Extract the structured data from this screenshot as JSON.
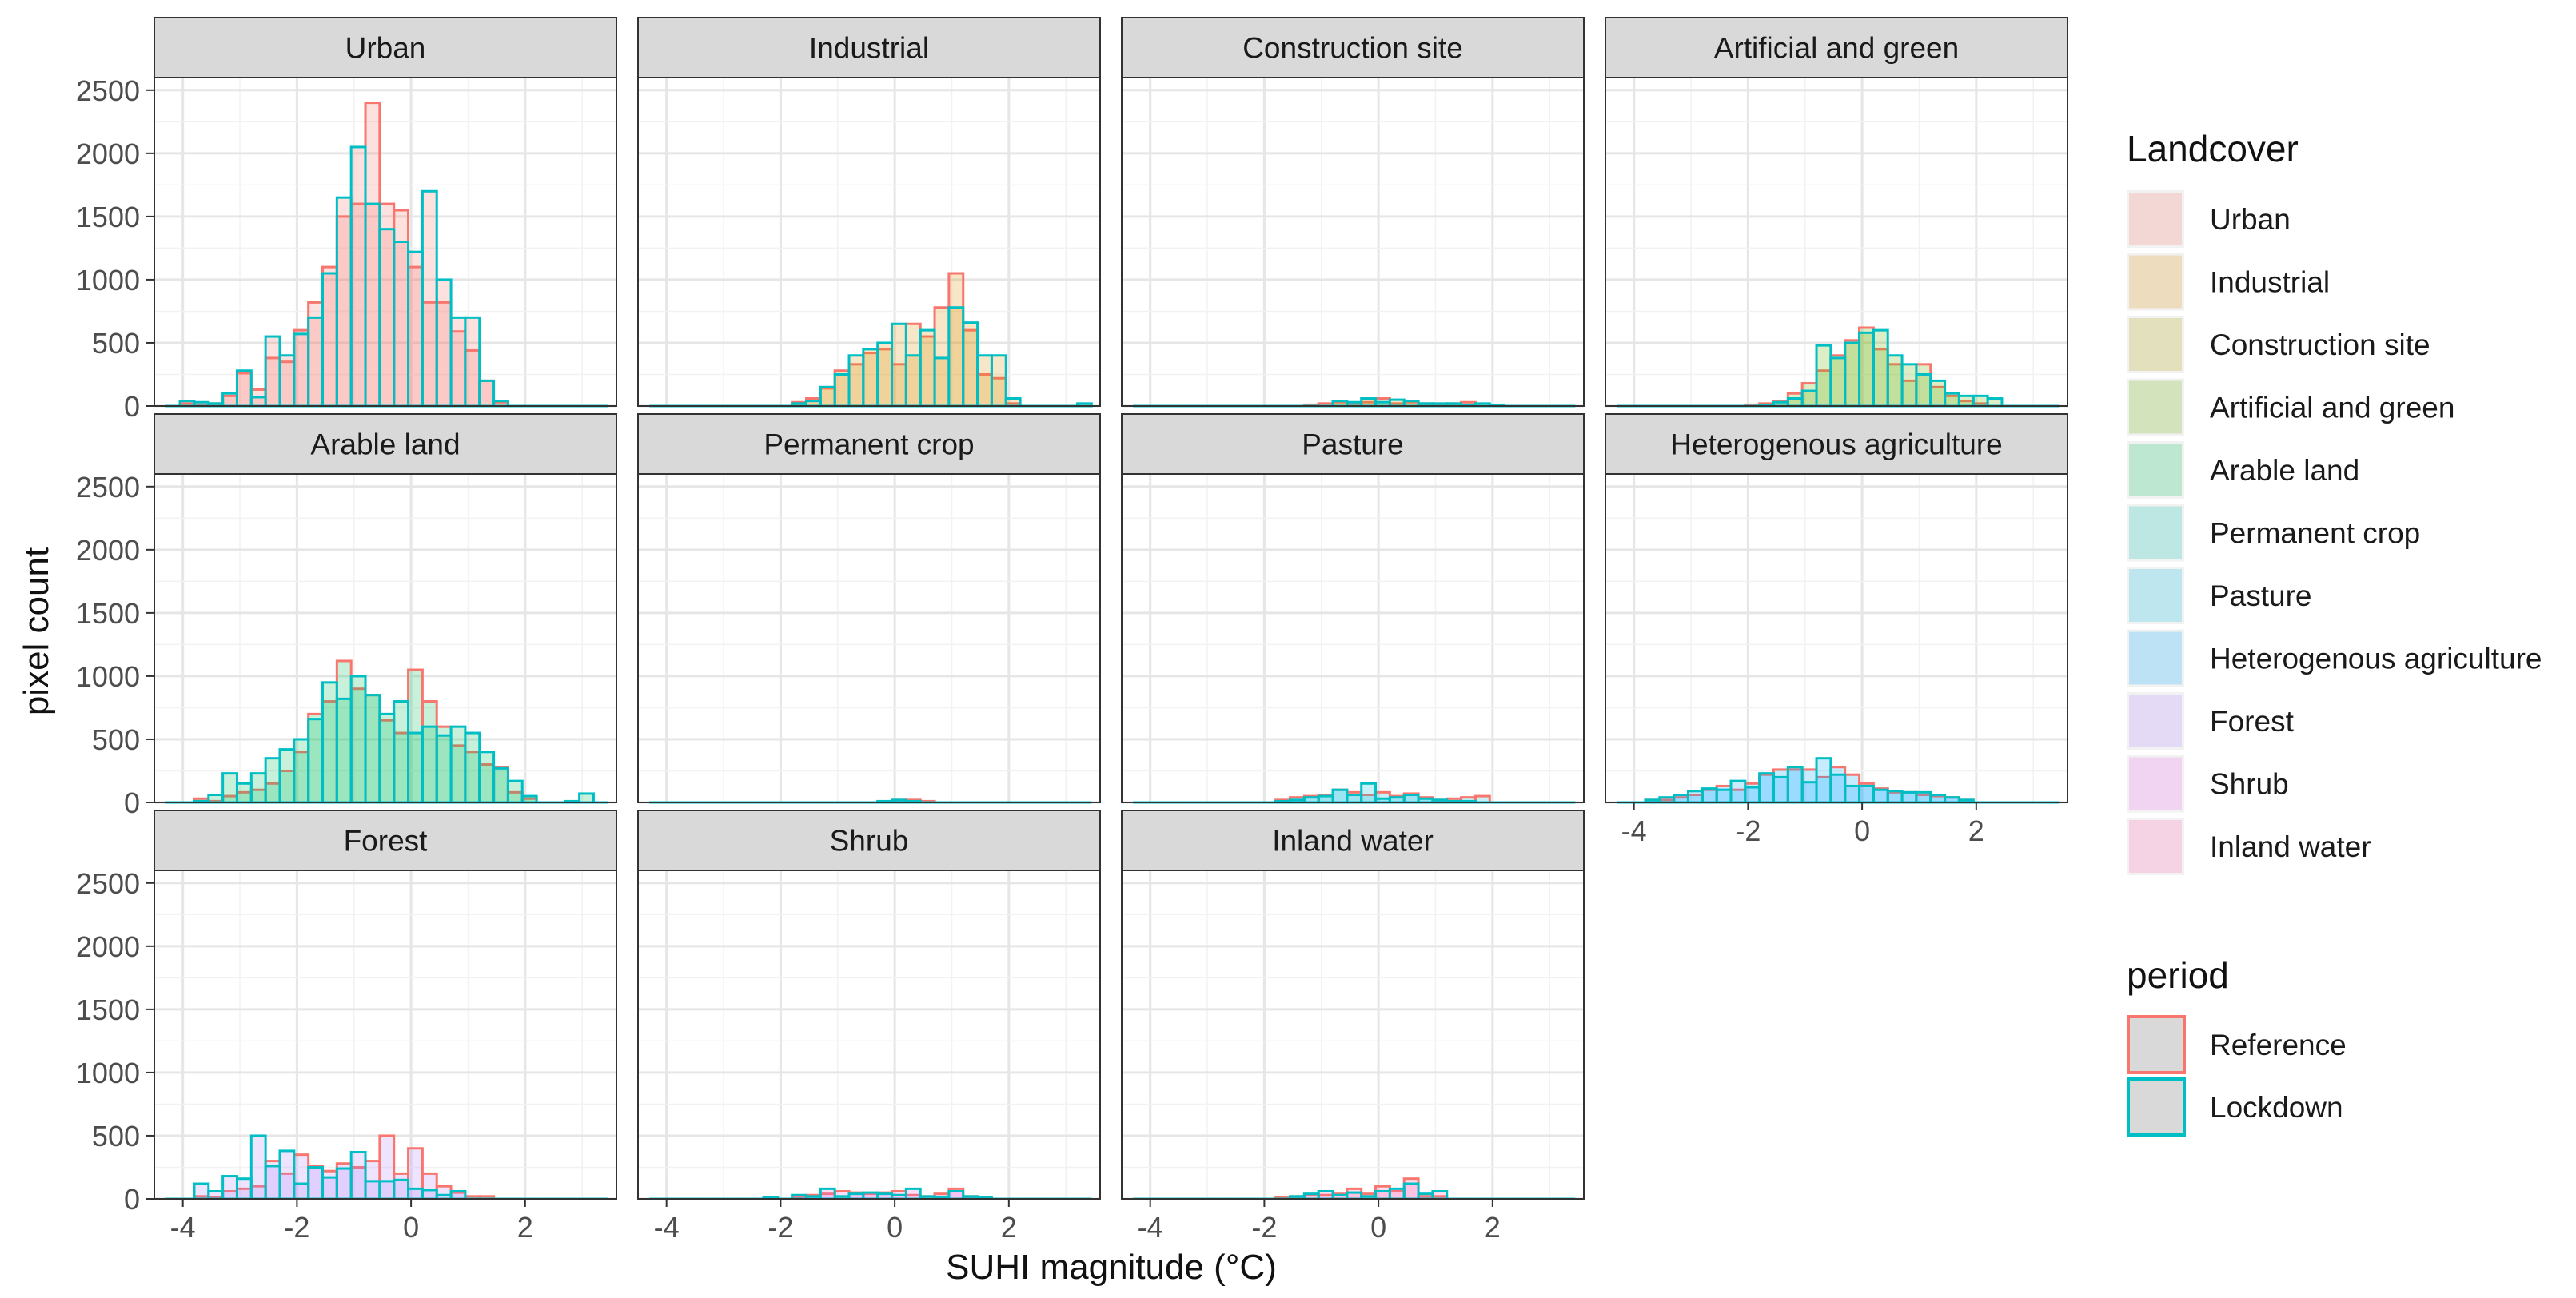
{
  "chart_data": {
    "type": "histogram",
    "layout": "facet_wrap",
    "xlabel": "SUHI magnitude (°C)",
    "ylabel": "pixel count",
    "xlim": [
      -4.5,
      3.6
    ],
    "ylim": [
      0,
      2600
    ],
    "x_ticks": [
      -4,
      -2,
      0,
      2
    ],
    "x_tick_labels": [
      "-4",
      "-2",
      "0",
      "2"
    ],
    "y_ticks": [
      0,
      500,
      1000,
      1500,
      2000,
      2500
    ],
    "y_tick_labels": [
      "0",
      "500",
      "1000",
      "1500",
      "2000",
      "2500"
    ],
    "bin_start": -4.3,
    "bin_width": 0.25,
    "bin_count": 31,
    "legends": {
      "landcover": {
        "title": "Landcover",
        "entries": [
          {
            "label": "Urban",
            "color": "#F8766D"
          },
          {
            "label": "Industrial",
            "color": "#DB8E00"
          },
          {
            "label": "Construction site",
            "color": "#AEA200"
          },
          {
            "label": "Artificial and green",
            "color": "#64B200"
          },
          {
            "label": "Arable land",
            "color": "#00BD5C"
          },
          {
            "label": "Permanent crop",
            "color": "#00C1A7"
          },
          {
            "label": "Pasture",
            "color": "#00BADE"
          },
          {
            "label": "Heterogenous agriculture",
            "color": "#00A6FF"
          },
          {
            "label": "Forest",
            "color": "#B385FF"
          },
          {
            "label": "Shrub",
            "color": "#EF67EB"
          },
          {
            "label": "Inland water",
            "color": "#FF63B6"
          }
        ]
      },
      "period": {
        "title": "period",
        "entries": [
          {
            "label": "Reference",
            "color": "#F8766D"
          },
          {
            "label": "Lockdown",
            "color": "#00BFC4"
          }
        ]
      }
    },
    "panels": [
      {
        "name": "Urban",
        "color": "#F8766D",
        "reference": [
          0,
          20,
          10,
          20,
          80,
          260,
          130,
          380,
          350,
          600,
          820,
          1100,
          1500,
          1600,
          2400,
          1600,
          1550,
          1100,
          820,
          820,
          590,
          440,
          200,
          30,
          0,
          0,
          0,
          0,
          0,
          0,
          0
        ],
        "lockdown": [
          0,
          40,
          30,
          20,
          100,
          280,
          70,
          550,
          400,
          570,
          700,
          1050,
          1650,
          2050,
          1600,
          1400,
          1300,
          1220,
          1700,
          1000,
          700,
          700,
          200,
          40,
          0,
          0,
          0,
          0,
          0,
          0,
          0
        ]
      },
      {
        "name": "Industrial",
        "color": "#DB8E00",
        "reference": [
          0,
          0,
          0,
          0,
          0,
          0,
          0,
          0,
          0,
          0,
          30,
          60,
          140,
          280,
          330,
          420,
          450,
          330,
          650,
          550,
          780,
          1050,
          600,
          250,
          220,
          20,
          0,
          0,
          0,
          0,
          0
        ],
        "lockdown": [
          0,
          0,
          0,
          0,
          0,
          0,
          0,
          0,
          0,
          0,
          20,
          40,
          150,
          250,
          400,
          450,
          500,
          650,
          400,
          600,
          380,
          780,
          660,
          400,
          400,
          60,
          0,
          0,
          0,
          0,
          20
        ]
      },
      {
        "name": "Construction site",
        "color": "#AEA200",
        "reference": [
          0,
          0,
          0,
          0,
          0,
          0,
          0,
          0,
          0,
          0,
          0,
          0,
          10,
          20,
          30,
          20,
          30,
          60,
          20,
          30,
          20,
          10,
          20,
          30,
          0,
          0,
          0,
          0,
          0,
          0,
          0
        ],
        "lockdown": [
          0,
          0,
          0,
          0,
          0,
          0,
          0,
          0,
          0,
          0,
          0,
          0,
          0,
          0,
          40,
          30,
          60,
          30,
          50,
          40,
          20,
          20,
          20,
          10,
          20,
          10,
          0,
          0,
          0,
          0,
          0
        ]
      },
      {
        "name": "Artificial and green",
        "color": "#64B200",
        "reference": [
          0,
          0,
          0,
          0,
          0,
          0,
          0,
          0,
          0,
          10,
          20,
          40,
          100,
          180,
          280,
          400,
          520,
          620,
          450,
          330,
          200,
          330,
          150,
          80,
          40,
          20,
          0,
          0,
          0,
          0,
          0
        ],
        "lockdown": [
          0,
          0,
          0,
          0,
          0,
          0,
          0,
          0,
          0,
          0,
          10,
          30,
          60,
          120,
          480,
          380,
          500,
          580,
          600,
          400,
          330,
          250,
          200,
          100,
          80,
          80,
          60,
          0,
          0,
          0,
          0
        ]
      },
      {
        "name": "Arable land",
        "color": "#00BD5C",
        "reference": [
          0,
          0,
          30,
          10,
          50,
          80,
          100,
          150,
          250,
          400,
          700,
          800,
          1120,
          900,
          850,
          650,
          550,
          1050,
          800,
          600,
          450,
          400,
          300,
          280,
          80,
          30,
          0,
          0,
          0,
          0,
          0
        ],
        "lockdown": [
          0,
          0,
          10,
          60,
          230,
          150,
          230,
          350,
          420,
          500,
          660,
          950,
          820,
          1000,
          850,
          700,
          800,
          550,
          600,
          530,
          600,
          550,
          400,
          270,
          170,
          50,
          0,
          0,
          10,
          70,
          0
        ]
      },
      {
        "name": "Permanent crop",
        "color": "#00C1A7",
        "reference": [
          0,
          0,
          0,
          0,
          0,
          0,
          0,
          0,
          0,
          0,
          0,
          0,
          0,
          0,
          0,
          0,
          0,
          20,
          20,
          10,
          0,
          0,
          0,
          0,
          0,
          0,
          0,
          0,
          0,
          0,
          0
        ],
        "lockdown": [
          0,
          0,
          0,
          0,
          0,
          0,
          0,
          0,
          0,
          0,
          0,
          0,
          0,
          0,
          0,
          0,
          10,
          20,
          10,
          0,
          0,
          0,
          0,
          0,
          0,
          0,
          0,
          0,
          0,
          0,
          0
        ]
      },
      {
        "name": "Pasture",
        "color": "#00BADE",
        "reference": [
          0,
          0,
          0,
          0,
          0,
          0,
          0,
          0,
          0,
          0,
          20,
          40,
          50,
          60,
          100,
          80,
          60,
          80,
          50,
          70,
          40,
          20,
          30,
          40,
          50,
          0,
          0,
          0,
          0,
          0,
          0
        ],
        "lockdown": [
          0,
          0,
          0,
          0,
          0,
          0,
          0,
          0,
          0,
          0,
          10,
          20,
          40,
          50,
          100,
          60,
          150,
          30,
          40,
          60,
          30,
          20,
          10,
          10,
          0,
          0,
          0,
          0,
          0,
          0,
          0
        ]
      },
      {
        "name": "Heterogenous agriculture",
        "color": "#00A6FF",
        "reference": [
          0,
          0,
          20,
          20,
          40,
          60,
          100,
          130,
          100,
          150,
          220,
          260,
          260,
          260,
          200,
          280,
          220,
          150,
          110,
          80,
          80,
          60,
          50,
          40,
          20,
          0,
          0,
          0,
          0,
          0,
          0
        ],
        "lockdown": [
          0,
          0,
          20,
          40,
          60,
          90,
          110,
          100,
          170,
          120,
          230,
          200,
          280,
          160,
          350,
          220,
          130,
          130,
          100,
          90,
          80,
          80,
          60,
          40,
          20,
          0,
          0,
          0,
          0,
          0,
          0
        ]
      },
      {
        "name": "Forest",
        "color": "#B385FF",
        "reference": [
          0,
          0,
          20,
          10,
          60,
          80,
          100,
          300,
          200,
          350,
          260,
          220,
          280,
          250,
          300,
          500,
          200,
          400,
          200,
          100,
          50,
          20,
          20,
          0,
          0,
          0,
          0,
          0,
          0,
          0,
          0
        ],
        "lockdown": [
          0,
          0,
          120,
          60,
          180,
          160,
          500,
          260,
          380,
          120,
          250,
          170,
          240,
          370,
          140,
          140,
          150,
          80,
          70,
          30,
          60,
          0,
          0,
          0,
          0,
          0,
          0,
          0,
          0,
          0,
          0
        ]
      },
      {
        "name": "Shrub",
        "color": "#EF67EB",
        "reference": [
          0,
          0,
          0,
          0,
          0,
          0,
          0,
          0,
          0,
          0,
          10,
          30,
          40,
          60,
          50,
          40,
          50,
          60,
          30,
          20,
          40,
          80,
          20,
          0,
          0,
          0,
          0,
          0,
          0,
          0,
          0
        ],
        "lockdown": [
          0,
          0,
          0,
          0,
          0,
          0,
          0,
          0,
          10,
          0,
          30,
          20,
          80,
          20,
          40,
          50,
          40,
          30,
          80,
          20,
          10,
          60,
          20,
          10,
          0,
          0,
          0,
          0,
          0,
          0,
          0
        ]
      },
      {
        "name": "Inland water",
        "color": "#FF63B6",
        "reference": [
          0,
          0,
          0,
          0,
          0,
          0,
          0,
          0,
          0,
          0,
          10,
          20,
          30,
          30,
          40,
          80,
          40,
          100,
          60,
          160,
          20,
          20,
          0,
          0,
          0,
          0,
          0,
          0,
          0,
          0,
          0
        ],
        "lockdown": [
          0,
          0,
          0,
          0,
          0,
          0,
          0,
          0,
          0,
          0,
          0,
          20,
          40,
          60,
          30,
          50,
          20,
          60,
          80,
          120,
          40,
          60,
          0,
          0,
          0,
          0,
          0,
          0,
          0,
          0,
          0
        ]
      }
    ]
  }
}
